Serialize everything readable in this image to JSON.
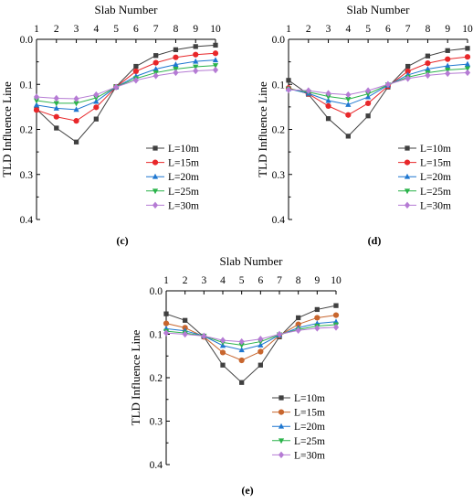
{
  "chart_data": [
    {
      "type": "line",
      "panel_label": "(c)",
      "title": "",
      "xlabel": "Slab Number",
      "ylabel": "TLD Influence Line",
      "x": [
        1,
        2,
        3,
        4,
        5,
        6,
        7,
        8,
        9,
        10
      ],
      "x_ticks": [
        "1",
        "2",
        "3",
        "4",
        "5",
        "6",
        "7",
        "8",
        "9",
        "10"
      ],
      "ylim": [
        0.0,
        0.4
      ],
      "y_ticks": [
        "0.0",
        "0.1",
        "0.2",
        "0.3",
        "0.4"
      ],
      "y_inverted": true,
      "x_axis_position": "top",
      "grid": false,
      "legend_position": "bottom-right",
      "series": [
        {
          "name": "L=10m",
          "color": "#404040",
          "marker": "square",
          "values": [
            0.155,
            0.197,
            0.228,
            0.177,
            0.105,
            0.06,
            0.036,
            0.023,
            0.016,
            0.013
          ]
        },
        {
          "name": "L=15m",
          "color": "#e8272a",
          "marker": "circle",
          "values": [
            0.157,
            0.172,
            0.181,
            0.151,
            0.106,
            0.071,
            0.052,
            0.04,
            0.034,
            0.031
          ]
        },
        {
          "name": "L=20m",
          "color": "#1f77d0",
          "marker": "triangle-up",
          "values": [
            0.146,
            0.153,
            0.156,
            0.138,
            0.106,
            0.082,
            0.066,
            0.056,
            0.049,
            0.046
          ]
        },
        {
          "name": "L=25m",
          "color": "#2ab34a",
          "marker": "triangle-down",
          "values": [
            0.136,
            0.142,
            0.142,
            0.13,
            0.106,
            0.087,
            0.074,
            0.066,
            0.061,
            0.058
          ]
        },
        {
          "name": "L=30m",
          "color": "#b57bd4",
          "marker": "diamond",
          "values": [
            0.128,
            0.131,
            0.132,
            0.123,
            0.106,
            0.091,
            0.081,
            0.074,
            0.07,
            0.068
          ]
        }
      ]
    },
    {
      "type": "line",
      "panel_label": "(d)",
      "title": "",
      "xlabel": "Slab Number",
      "ylabel": "TLD Influence Line",
      "x": [
        1,
        2,
        3,
        4,
        5,
        6,
        7,
        8,
        9,
        10
      ],
      "x_ticks": [
        "1",
        "2",
        "3",
        "4",
        "5",
        "6",
        "7",
        "8",
        "9",
        "10"
      ],
      "ylim": [
        0.0,
        0.4
      ],
      "y_ticks": [
        "0.0",
        "0.1",
        "0.2",
        "0.3",
        "0.4"
      ],
      "y_inverted": true,
      "x_axis_position": "top",
      "grid": false,
      "legend_position": "bottom-right",
      "series": [
        {
          "name": "L=10m",
          "color": "#404040",
          "marker": "square",
          "values": [
            0.091,
            0.122,
            0.176,
            0.215,
            0.17,
            0.106,
            0.06,
            0.037,
            0.025,
            0.02
          ]
        },
        {
          "name": "L=15m",
          "color": "#e8272a",
          "marker": "circle",
          "values": [
            0.108,
            0.121,
            0.148,
            0.168,
            0.142,
            0.104,
            0.071,
            0.053,
            0.044,
            0.039
          ]
        },
        {
          "name": "L=20m",
          "color": "#1f77d0",
          "marker": "triangle-up",
          "values": [
            0.11,
            0.12,
            0.136,
            0.145,
            0.128,
            0.102,
            0.079,
            0.066,
            0.059,
            0.055
          ]
        },
        {
          "name": "L=25m",
          "color": "#2ab34a",
          "marker": "triangle-down",
          "values": [
            0.11,
            0.117,
            0.127,
            0.133,
            0.121,
            0.101,
            0.084,
            0.074,
            0.068,
            0.065
          ]
        },
        {
          "name": "L=30m",
          "color": "#b57bd4",
          "marker": "diamond",
          "values": [
            0.112,
            0.114,
            0.12,
            0.123,
            0.114,
            0.1,
            0.087,
            0.08,
            0.076,
            0.074
          ]
        }
      ]
    },
    {
      "type": "line",
      "panel_label": "(e)",
      "title": "",
      "xlabel": "Slab Number",
      "ylabel": "TLD Influence Line",
      "x": [
        1,
        2,
        3,
        4,
        5,
        6,
        7,
        8,
        9,
        10
      ],
      "x_ticks": [
        "1",
        "2",
        "3",
        "4",
        "5",
        "6",
        "7",
        "8",
        "9",
        "10"
      ],
      "ylim": [
        0.0,
        0.4
      ],
      "y_ticks": [
        "0.0",
        "0.1",
        "0.2",
        "0.3",
        "0.4"
      ],
      "y_inverted": true,
      "x_axis_position": "top",
      "grid": false,
      "legend_position": "bottom-center",
      "series": [
        {
          "name": "L=10m",
          "color": "#404040",
          "marker": "square",
          "values": [
            0.053,
            0.068,
            0.106,
            0.171,
            0.211,
            0.171,
            0.106,
            0.062,
            0.043,
            0.034
          ]
        },
        {
          "name": "L=15m",
          "color": "#c8662e",
          "marker": "circle",
          "values": [
            0.075,
            0.085,
            0.106,
            0.142,
            0.16,
            0.14,
            0.103,
            0.077,
            0.062,
            0.056
          ]
        },
        {
          "name": "L=20m",
          "color": "#1f77d0",
          "marker": "triangle-up",
          "values": [
            0.087,
            0.092,
            0.104,
            0.126,
            0.136,
            0.125,
            0.102,
            0.085,
            0.075,
            0.071
          ]
        },
        {
          "name": "L=25m",
          "color": "#2ab34a",
          "marker": "triangle-down",
          "values": [
            0.093,
            0.097,
            0.104,
            0.119,
            0.125,
            0.117,
            0.101,
            0.089,
            0.081,
            0.078
          ]
        },
        {
          "name": "L=30m",
          "color": "#b57bd4",
          "marker": "diamond",
          "values": [
            0.097,
            0.1,
            0.104,
            0.114,
            0.117,
            0.111,
            0.1,
            0.091,
            0.086,
            0.084
          ]
        }
      ]
    }
  ]
}
